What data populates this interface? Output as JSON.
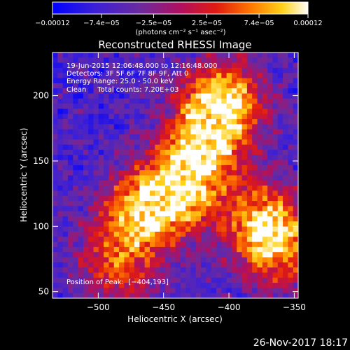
{
  "chart_data": {
    "type": "heatmap",
    "title": "Reconstructed RHESSI Image",
    "xlabel": "Heliocentric X (arcsec)",
    "ylabel": "Heliocentric Y (arcsec)",
    "xlim": [
      -535,
      -347
    ],
    "ylim": [
      45,
      233
    ],
    "x_ticks": [
      -500,
      -450,
      -400,
      -350
    ],
    "x_tick_labels": [
      "−500",
      "−450",
      "−400",
      "−350"
    ],
    "y_ticks": [
      50,
      100,
      150,
      200
    ],
    "y_tick_labels": [
      "50",
      "100",
      "150",
      "200"
    ],
    "colorbar": {
      "min": -0.00012,
      "max": 0.00012,
      "ticks": [
        -0.00012,
        -7.4e-05,
        -2.5e-05,
        2.5e-05,
        7.4e-05,
        0.00012
      ],
      "tick_labels": [
        "−0.00012",
        "−7.4e−05",
        "−2.5e−05",
        "2.5e−05",
        "7.4e−05",
        "0.00012"
      ],
      "unit_label": "(photons cm⁻² s⁻¹ asec⁻²)"
    },
    "info_lines": [
      "19-Jun-2015 12:06:48.000 to 12:16:48.000",
      "Detectors: 3F 5F 6F 7F 8F 9F, Att 0",
      "Energy Range: 25.0 - 50.0 keV",
      "Clean     Total counts: 7.20E+03"
    ],
    "peak_label": "Position of Peak:  [−404,193]",
    "peak": {
      "x": -404,
      "y": 193
    },
    "emission_centers": [
      {
        "x": -405,
        "y": 195,
        "weight": 1.0
      },
      {
        "x": -420,
        "y": 160,
        "weight": 0.8
      },
      {
        "x": -440,
        "y": 125,
        "weight": 0.85
      },
      {
        "x": -470,
        "y": 110,
        "weight": 0.7
      },
      {
        "x": -375,
        "y": 105,
        "weight": 0.75
      },
      {
        "x": -360,
        "y": 80,
        "weight": 0.6
      },
      {
        "x": -485,
        "y": 70,
        "weight": 0.55
      }
    ],
    "grid": false
  },
  "footer": {
    "date_stamp": "26-Nov-2017 18:17"
  }
}
